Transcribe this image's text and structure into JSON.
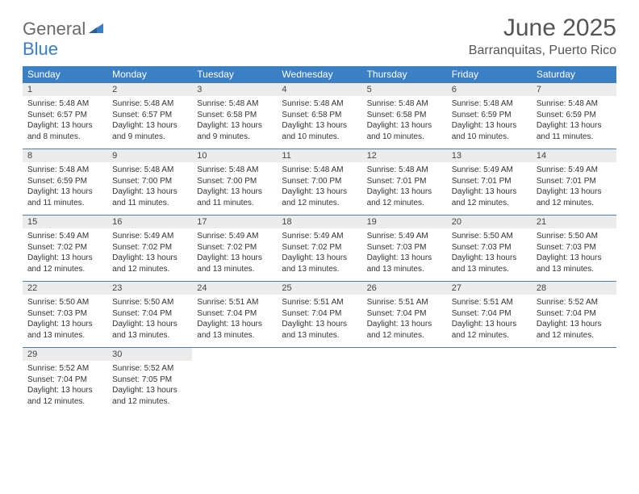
{
  "logo": {
    "line1": "General",
    "line2": "Blue",
    "mark_color": "#3b7fc4"
  },
  "title": "June 2025",
  "location": "Barranquitas, Puerto Rico",
  "colors": {
    "header_bg": "#3b7fc4",
    "header_text": "#ffffff",
    "daynum_bg": "#ececec",
    "daynum_border": "#4d7fa8",
    "body_text": "#333333",
    "title_text": "#555555"
  },
  "fonts": {
    "title_size": 30,
    "location_size": 16,
    "weekday_size": 12,
    "daynum_size": 11,
    "cell_size": 10
  },
  "weekdays": [
    "Sunday",
    "Monday",
    "Tuesday",
    "Wednesday",
    "Thursday",
    "Friday",
    "Saturday"
  ],
  "weeks": [
    [
      {
        "day": "1",
        "sunrise": "5:48 AM",
        "sunset": "6:57 PM",
        "daylight": "13 hours and 8 minutes."
      },
      {
        "day": "2",
        "sunrise": "5:48 AM",
        "sunset": "6:57 PM",
        "daylight": "13 hours and 9 minutes."
      },
      {
        "day": "3",
        "sunrise": "5:48 AM",
        "sunset": "6:58 PM",
        "daylight": "13 hours and 9 minutes."
      },
      {
        "day": "4",
        "sunrise": "5:48 AM",
        "sunset": "6:58 PM",
        "daylight": "13 hours and 10 minutes."
      },
      {
        "day": "5",
        "sunrise": "5:48 AM",
        "sunset": "6:58 PM",
        "daylight": "13 hours and 10 minutes."
      },
      {
        "day": "6",
        "sunrise": "5:48 AM",
        "sunset": "6:59 PM",
        "daylight": "13 hours and 10 minutes."
      },
      {
        "day": "7",
        "sunrise": "5:48 AM",
        "sunset": "6:59 PM",
        "daylight": "13 hours and 11 minutes."
      }
    ],
    [
      {
        "day": "8",
        "sunrise": "5:48 AM",
        "sunset": "6:59 PM",
        "daylight": "13 hours and 11 minutes."
      },
      {
        "day": "9",
        "sunrise": "5:48 AM",
        "sunset": "7:00 PM",
        "daylight": "13 hours and 11 minutes."
      },
      {
        "day": "10",
        "sunrise": "5:48 AM",
        "sunset": "7:00 PM",
        "daylight": "13 hours and 11 minutes."
      },
      {
        "day": "11",
        "sunrise": "5:48 AM",
        "sunset": "7:00 PM",
        "daylight": "13 hours and 12 minutes."
      },
      {
        "day": "12",
        "sunrise": "5:48 AM",
        "sunset": "7:01 PM",
        "daylight": "13 hours and 12 minutes."
      },
      {
        "day": "13",
        "sunrise": "5:49 AM",
        "sunset": "7:01 PM",
        "daylight": "13 hours and 12 minutes."
      },
      {
        "day": "14",
        "sunrise": "5:49 AM",
        "sunset": "7:01 PM",
        "daylight": "13 hours and 12 minutes."
      }
    ],
    [
      {
        "day": "15",
        "sunrise": "5:49 AM",
        "sunset": "7:02 PM",
        "daylight": "13 hours and 12 minutes."
      },
      {
        "day": "16",
        "sunrise": "5:49 AM",
        "sunset": "7:02 PM",
        "daylight": "13 hours and 12 minutes."
      },
      {
        "day": "17",
        "sunrise": "5:49 AM",
        "sunset": "7:02 PM",
        "daylight": "13 hours and 13 minutes."
      },
      {
        "day": "18",
        "sunrise": "5:49 AM",
        "sunset": "7:02 PM",
        "daylight": "13 hours and 13 minutes."
      },
      {
        "day": "19",
        "sunrise": "5:49 AM",
        "sunset": "7:03 PM",
        "daylight": "13 hours and 13 minutes."
      },
      {
        "day": "20",
        "sunrise": "5:50 AM",
        "sunset": "7:03 PM",
        "daylight": "13 hours and 13 minutes."
      },
      {
        "day": "21",
        "sunrise": "5:50 AM",
        "sunset": "7:03 PM",
        "daylight": "13 hours and 13 minutes."
      }
    ],
    [
      {
        "day": "22",
        "sunrise": "5:50 AM",
        "sunset": "7:03 PM",
        "daylight": "13 hours and 13 minutes."
      },
      {
        "day": "23",
        "sunrise": "5:50 AM",
        "sunset": "7:04 PM",
        "daylight": "13 hours and 13 minutes."
      },
      {
        "day": "24",
        "sunrise": "5:51 AM",
        "sunset": "7:04 PM",
        "daylight": "13 hours and 13 minutes."
      },
      {
        "day": "25",
        "sunrise": "5:51 AM",
        "sunset": "7:04 PM",
        "daylight": "13 hours and 13 minutes."
      },
      {
        "day": "26",
        "sunrise": "5:51 AM",
        "sunset": "7:04 PM",
        "daylight": "13 hours and 12 minutes."
      },
      {
        "day": "27",
        "sunrise": "5:51 AM",
        "sunset": "7:04 PM",
        "daylight": "13 hours and 12 minutes."
      },
      {
        "day": "28",
        "sunrise": "5:52 AM",
        "sunset": "7:04 PM",
        "daylight": "13 hours and 12 minutes."
      }
    ],
    [
      {
        "day": "29",
        "sunrise": "5:52 AM",
        "sunset": "7:04 PM",
        "daylight": "13 hours and 12 minutes."
      },
      {
        "day": "30",
        "sunrise": "5:52 AM",
        "sunset": "7:05 PM",
        "daylight": "13 hours and 12 minutes."
      },
      null,
      null,
      null,
      null,
      null
    ]
  ],
  "labels": {
    "sunrise": "Sunrise:",
    "sunset": "Sunset:",
    "daylight": "Daylight:"
  }
}
